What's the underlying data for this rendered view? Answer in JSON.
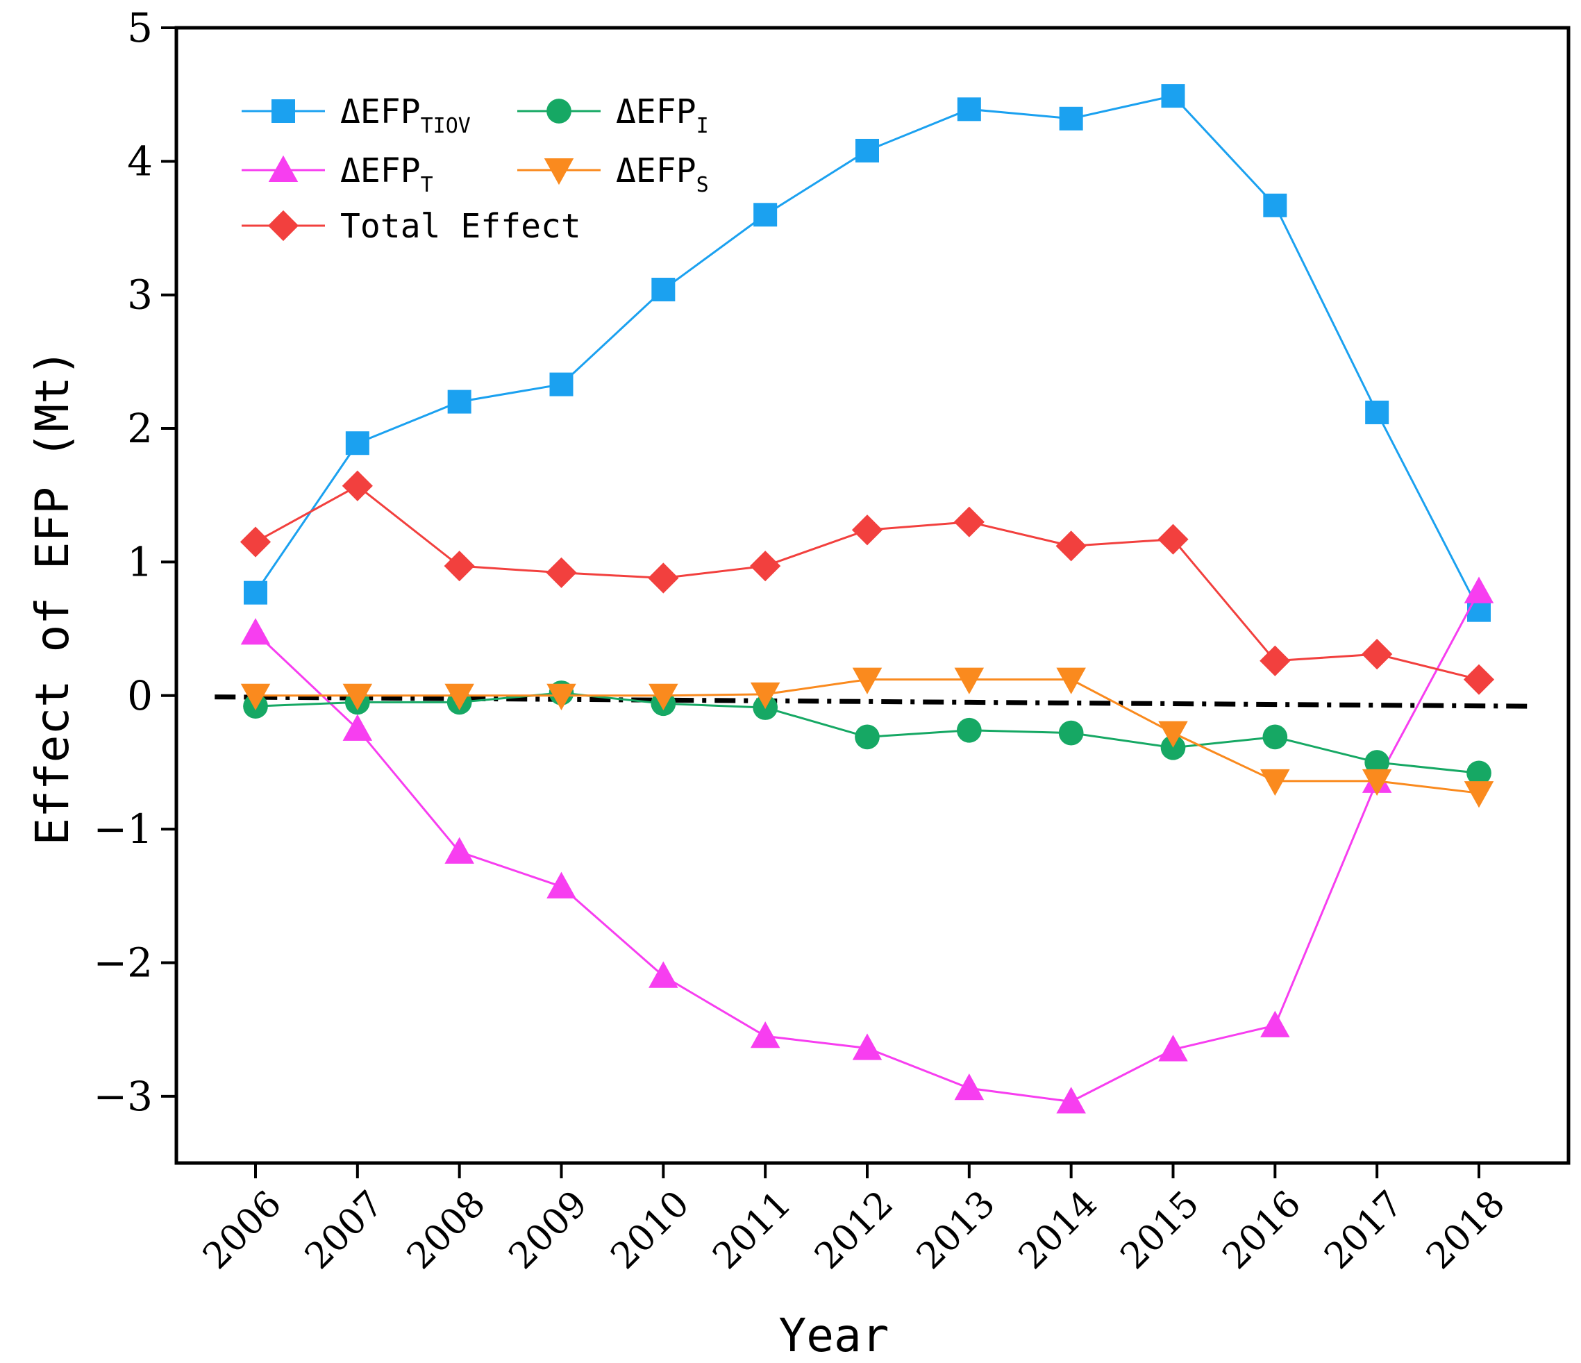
{
  "chart_data": {
    "type": "line",
    "title": "",
    "xlabel": "Year",
    "ylabel": "Effect of EFP (Mt)",
    "ylim": [
      -3.5,
      5
    ],
    "yticks": [
      "−3",
      "−2",
      "−1",
      "0",
      "1",
      "2",
      "3",
      "4",
      "5"
    ],
    "ytick_values": [
      -3,
      -2,
      -1,
      0,
      1,
      2,
      3,
      4,
      5
    ],
    "grid": false,
    "legend_position": "top-left",
    "categories": [
      "2006",
      "2007",
      "2008",
      "2009",
      "2010",
      "2011",
      "2012",
      "2013",
      "2014",
      "2015",
      "2016",
      "2017",
      "2018"
    ],
    "series": [
      {
        "name": "ΔEFP",
        "sub": "TIOV",
        "marker": "square",
        "color": "#1ba1f0",
        "values": [
          0.77,
          1.89,
          2.2,
          2.33,
          3.04,
          3.6,
          4.08,
          4.39,
          4.32,
          4.49,
          3.67,
          2.12,
          0.64
        ]
      },
      {
        "name": "ΔEFP",
        "sub": "T",
        "marker": "triangle-up",
        "color": "#f73ef0",
        "values": [
          0.47,
          -0.25,
          -1.17,
          -1.43,
          -2.1,
          -2.55,
          -2.64,
          -2.94,
          -3.04,
          -2.65,
          -2.47,
          -0.64,
          0.78
        ]
      },
      {
        "name": "Total Effect",
        "sub": "",
        "marker": "diamond",
        "color": "#f2403e",
        "values": [
          1.15,
          1.57,
          0.97,
          0.92,
          0.88,
          0.97,
          1.24,
          1.3,
          1.12,
          1.17,
          0.26,
          0.31,
          0.12
        ]
      },
      {
        "name": "ΔEFP",
        "sub": "I",
        "marker": "circle",
        "color": "#16a864",
        "values": [
          -0.08,
          -0.05,
          -0.05,
          0.02,
          -0.06,
          -0.09,
          -0.31,
          -0.26,
          -0.28,
          -0.39,
          -0.31,
          -0.5,
          -0.58
        ]
      },
      {
        "name": "ΔEFP",
        "sub": "S",
        "marker": "triangle-down",
        "color": "#fa8a1e",
        "values": [
          0.0,
          0.0,
          0.0,
          0.0,
          0.0,
          0.01,
          0.12,
          0.12,
          0.12,
          -0.28,
          -0.64,
          -0.64,
          -0.73
        ]
      }
    ],
    "reference_line": {
      "style": "dash-dot",
      "color": "#000000",
      "x": [
        2005.6,
        2018.5
      ],
      "y": [
        -0.01,
        -0.08
      ]
    }
  }
}
